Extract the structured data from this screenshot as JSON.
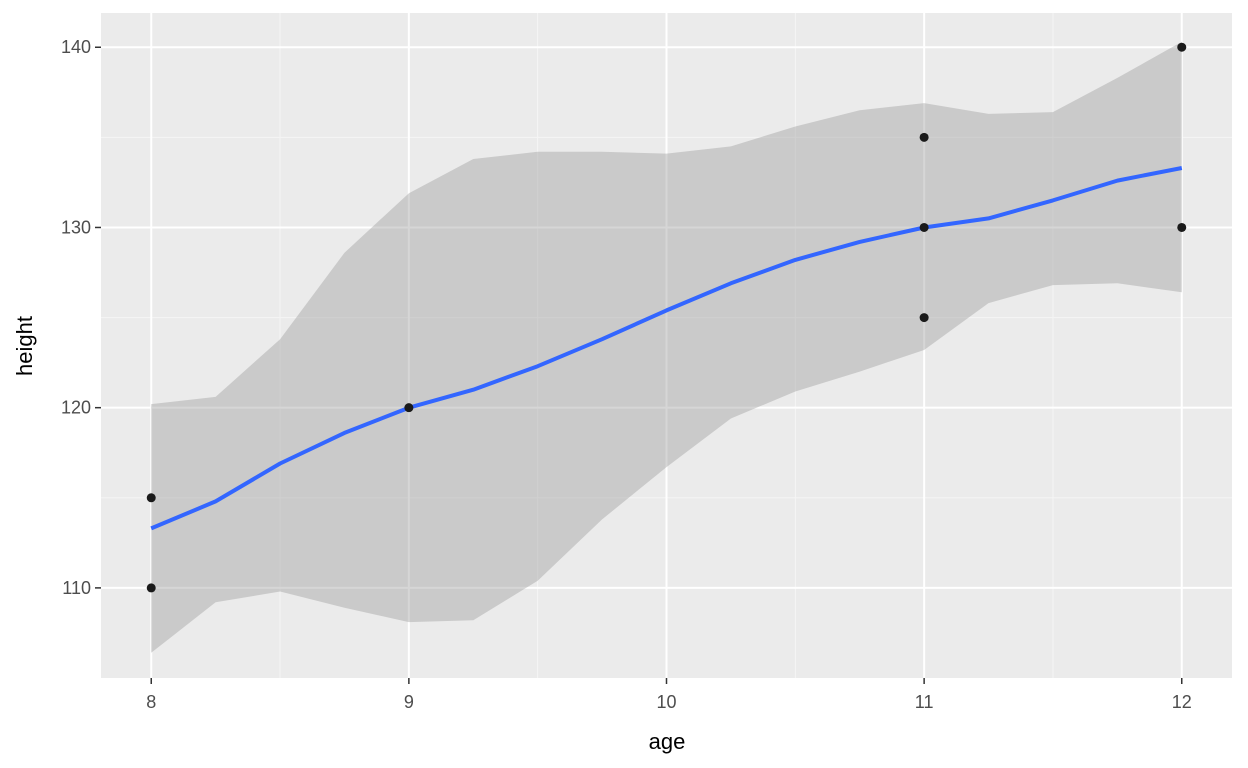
{
  "chart_data": {
    "type": "scatter",
    "xlabel": "age",
    "ylabel": "height",
    "xlim": [
      7.805,
      12.195
    ],
    "ylim": [
      105.0,
      141.9
    ],
    "x_ticks": [
      8,
      9,
      10,
      11,
      12
    ],
    "y_ticks": [
      110,
      120,
      130,
      140
    ],
    "x_minor_ticks": [
      8.5,
      9.5,
      10.5,
      11.5
    ],
    "y_minor_ticks": [
      115,
      125,
      135
    ],
    "grid": true,
    "points": [
      {
        "x": 8,
        "y": 115
      },
      {
        "x": 8,
        "y": 110
      },
      {
        "x": 9,
        "y": 120
      },
      {
        "x": 11,
        "y": 135
      },
      {
        "x": 11,
        "y": 130
      },
      {
        "x": 11,
        "y": 125
      },
      {
        "x": 12,
        "y": 140
      },
      {
        "x": 12,
        "y": 130
      }
    ],
    "smooth": {
      "x": [
        8.0,
        8.25,
        8.5,
        8.75,
        9.0,
        9.25,
        9.5,
        9.75,
        10.0,
        10.25,
        10.5,
        10.75,
        11.0,
        11.25,
        11.5,
        11.75,
        12.0
      ],
      "y": [
        113.3,
        114.8,
        116.9,
        118.6,
        120.0,
        121.0,
        122.3,
        123.8,
        125.4,
        126.9,
        128.2,
        129.2,
        130.0,
        130.5,
        131.5,
        132.6,
        133.3
      ],
      "ymin": [
        106.4,
        109.2,
        109.8,
        108.9,
        108.1,
        108.2,
        110.4,
        113.8,
        116.7,
        119.4,
        120.9,
        122.0,
        123.2,
        125.8,
        126.8,
        126.9,
        126.4
      ],
      "ymax": [
        120.2,
        120.6,
        123.8,
        128.6,
        131.9,
        133.8,
        134.2,
        134.2,
        134.1,
        134.5,
        135.6,
        136.5,
        136.9,
        136.3,
        136.4,
        138.3,
        140.3
      ]
    },
    "colors": {
      "panel_background": "#ebebeb",
      "grid_major": "#ffffff",
      "grid_minor": "#f5f5f5",
      "ribbon": "#999999",
      "line": "#3366ff",
      "points": "#1a1a1a",
      "tick_text": "#4d4d4d",
      "tick_mark": "#333333",
      "axis_title": "#000000"
    }
  }
}
